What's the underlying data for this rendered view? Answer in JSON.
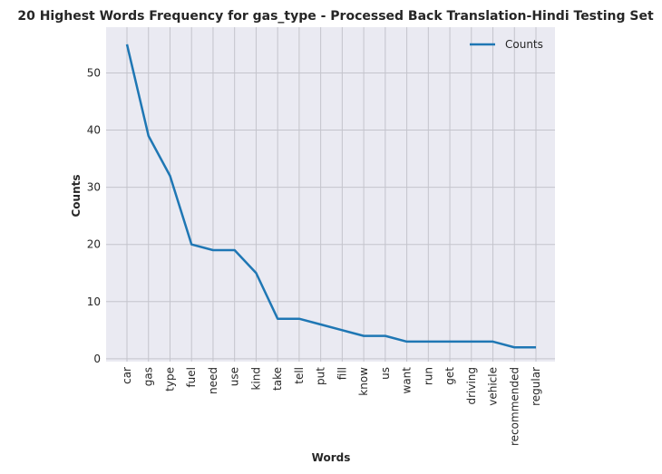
{
  "chart_data": {
    "type": "line",
    "title": "20 Highest Words Frequency for gas_type - Processed Back Translation-Hindi Testing Set",
    "xlabel": "Words",
    "ylabel": "Counts",
    "categories": [
      "car",
      "gas",
      "type",
      "fuel",
      "need",
      "use",
      "kind",
      "take",
      "tell",
      "put",
      "fill",
      "know",
      "us",
      "want",
      "run",
      "get",
      "driving",
      "vehicle",
      "recommended",
      "regular"
    ],
    "series": [
      {
        "name": "Counts",
        "color": "#1f77b4",
        "values": [
          55,
          39,
          32,
          20,
          19,
          19,
          15,
          7,
          7,
          6,
          5,
          4,
          4,
          3,
          3,
          3,
          3,
          3,
          2,
          2
        ]
      }
    ],
    "yticks": [
      0,
      10,
      20,
      30,
      40,
      50
    ],
    "ylim": [
      -0.5,
      58
    ],
    "grid": true,
    "legend": "top-right",
    "colors": {
      "background": "#eaeaf2",
      "grid": "#c4c4cc",
      "line": "#1f77b4"
    }
  }
}
